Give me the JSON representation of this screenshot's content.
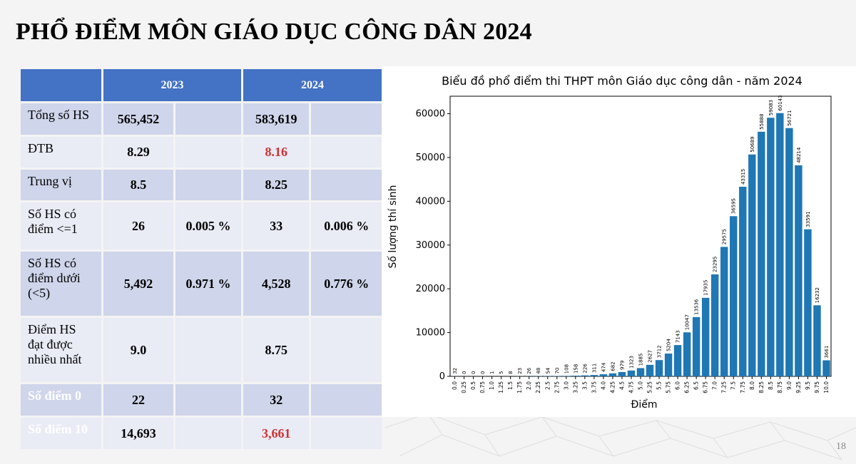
{
  "slide": {
    "title": "PHỔ ĐIỂM MÔN GIÁO DỤC CÔNG DÂN 2024",
    "page_number": "18"
  },
  "table": {
    "headers": [
      "",
      "2023",
      "2024"
    ],
    "rows": [
      {
        "label": "Tổng số HS",
        "v2023": "565,452",
        "p2023": "",
        "v2024": "583,619",
        "p2024": ""
      },
      {
        "label": "ĐTB",
        "v2023": "8.29",
        "p2023": "",
        "v2024": "8.16",
        "p2024": ""
      },
      {
        "label": "Trung vị",
        "v2023": "8.5",
        "p2023": "",
        "v2024": "8.25",
        "p2024": ""
      },
      {
        "label": "Số HS có điểm <=1",
        "v2023": "26",
        "p2023": "0.005 %",
        "v2024": "33",
        "p2024": "0.006 %"
      },
      {
        "label": "Số HS có điểm dưới (<5)",
        "v2023": "5,492",
        "p2023": "0.971 %",
        "v2024": "4,528",
        "p2024": "0.776 %"
      },
      {
        "label": "Điểm HS đạt được nhiều nhất",
        "v2023": "9.0",
        "p2023": "",
        "v2024": "8.75",
        "p2024": ""
      },
      {
        "label": "Số điểm 0",
        "v2023": "22",
        "p2023": "",
        "v2024": "32",
        "p2024": ""
      },
      {
        "label": "Số điểm 10",
        "v2023": "14,693",
        "p2023": "",
        "v2024": "3,661",
        "p2024": ""
      }
    ],
    "highlight_color": "#d03030"
  },
  "chart_data": {
    "type": "bar",
    "title": "Biểu đồ phổ điểm thi THPT môn Giáo dục công dân - năm 2024",
    "xlabel": "Điểm",
    "ylabel": "Số lượng thí sinh",
    "categories": [
      "0.0",
      "0.25",
      "0.5",
      "0.75",
      "1.0",
      "1.25",
      "1.5",
      "1.75",
      "2.0",
      "2.25",
      "2.5",
      "2.75",
      "3.0",
      "3.25",
      "3.5",
      "3.75",
      "4.0",
      "4.25",
      "4.5",
      "4.75",
      "5.0",
      "5.25",
      "5.5",
      "5.75",
      "6.0",
      "6.25",
      "6.5",
      "6.75",
      "7.0",
      "7.25",
      "7.5",
      "7.75",
      "8.0",
      "8.25",
      "8.5",
      "8.75",
      "9.0",
      "9.25",
      "9.5",
      "9.75",
      "10.0"
    ],
    "values": [
      32,
      0,
      0,
      0,
      1,
      5,
      8,
      23,
      26,
      48,
      54,
      70,
      108,
      158,
      226,
      311,
      474,
      682,
      979,
      1323,
      1885,
      2627,
      3712,
      5204,
      7143,
      10047,
      13536,
      17935,
      23295,
      29575,
      36595,
      43315,
      50689,
      55888,
      59083,
      60143,
      56721,
      48214,
      33591,
      16232,
      3661
    ],
    "yticks": [
      0,
      10000,
      20000,
      30000,
      40000,
      50000,
      60000
    ],
    "ylim": [
      0,
      64000
    ],
    "bar_color": "#1f77b4",
    "grid": false
  }
}
